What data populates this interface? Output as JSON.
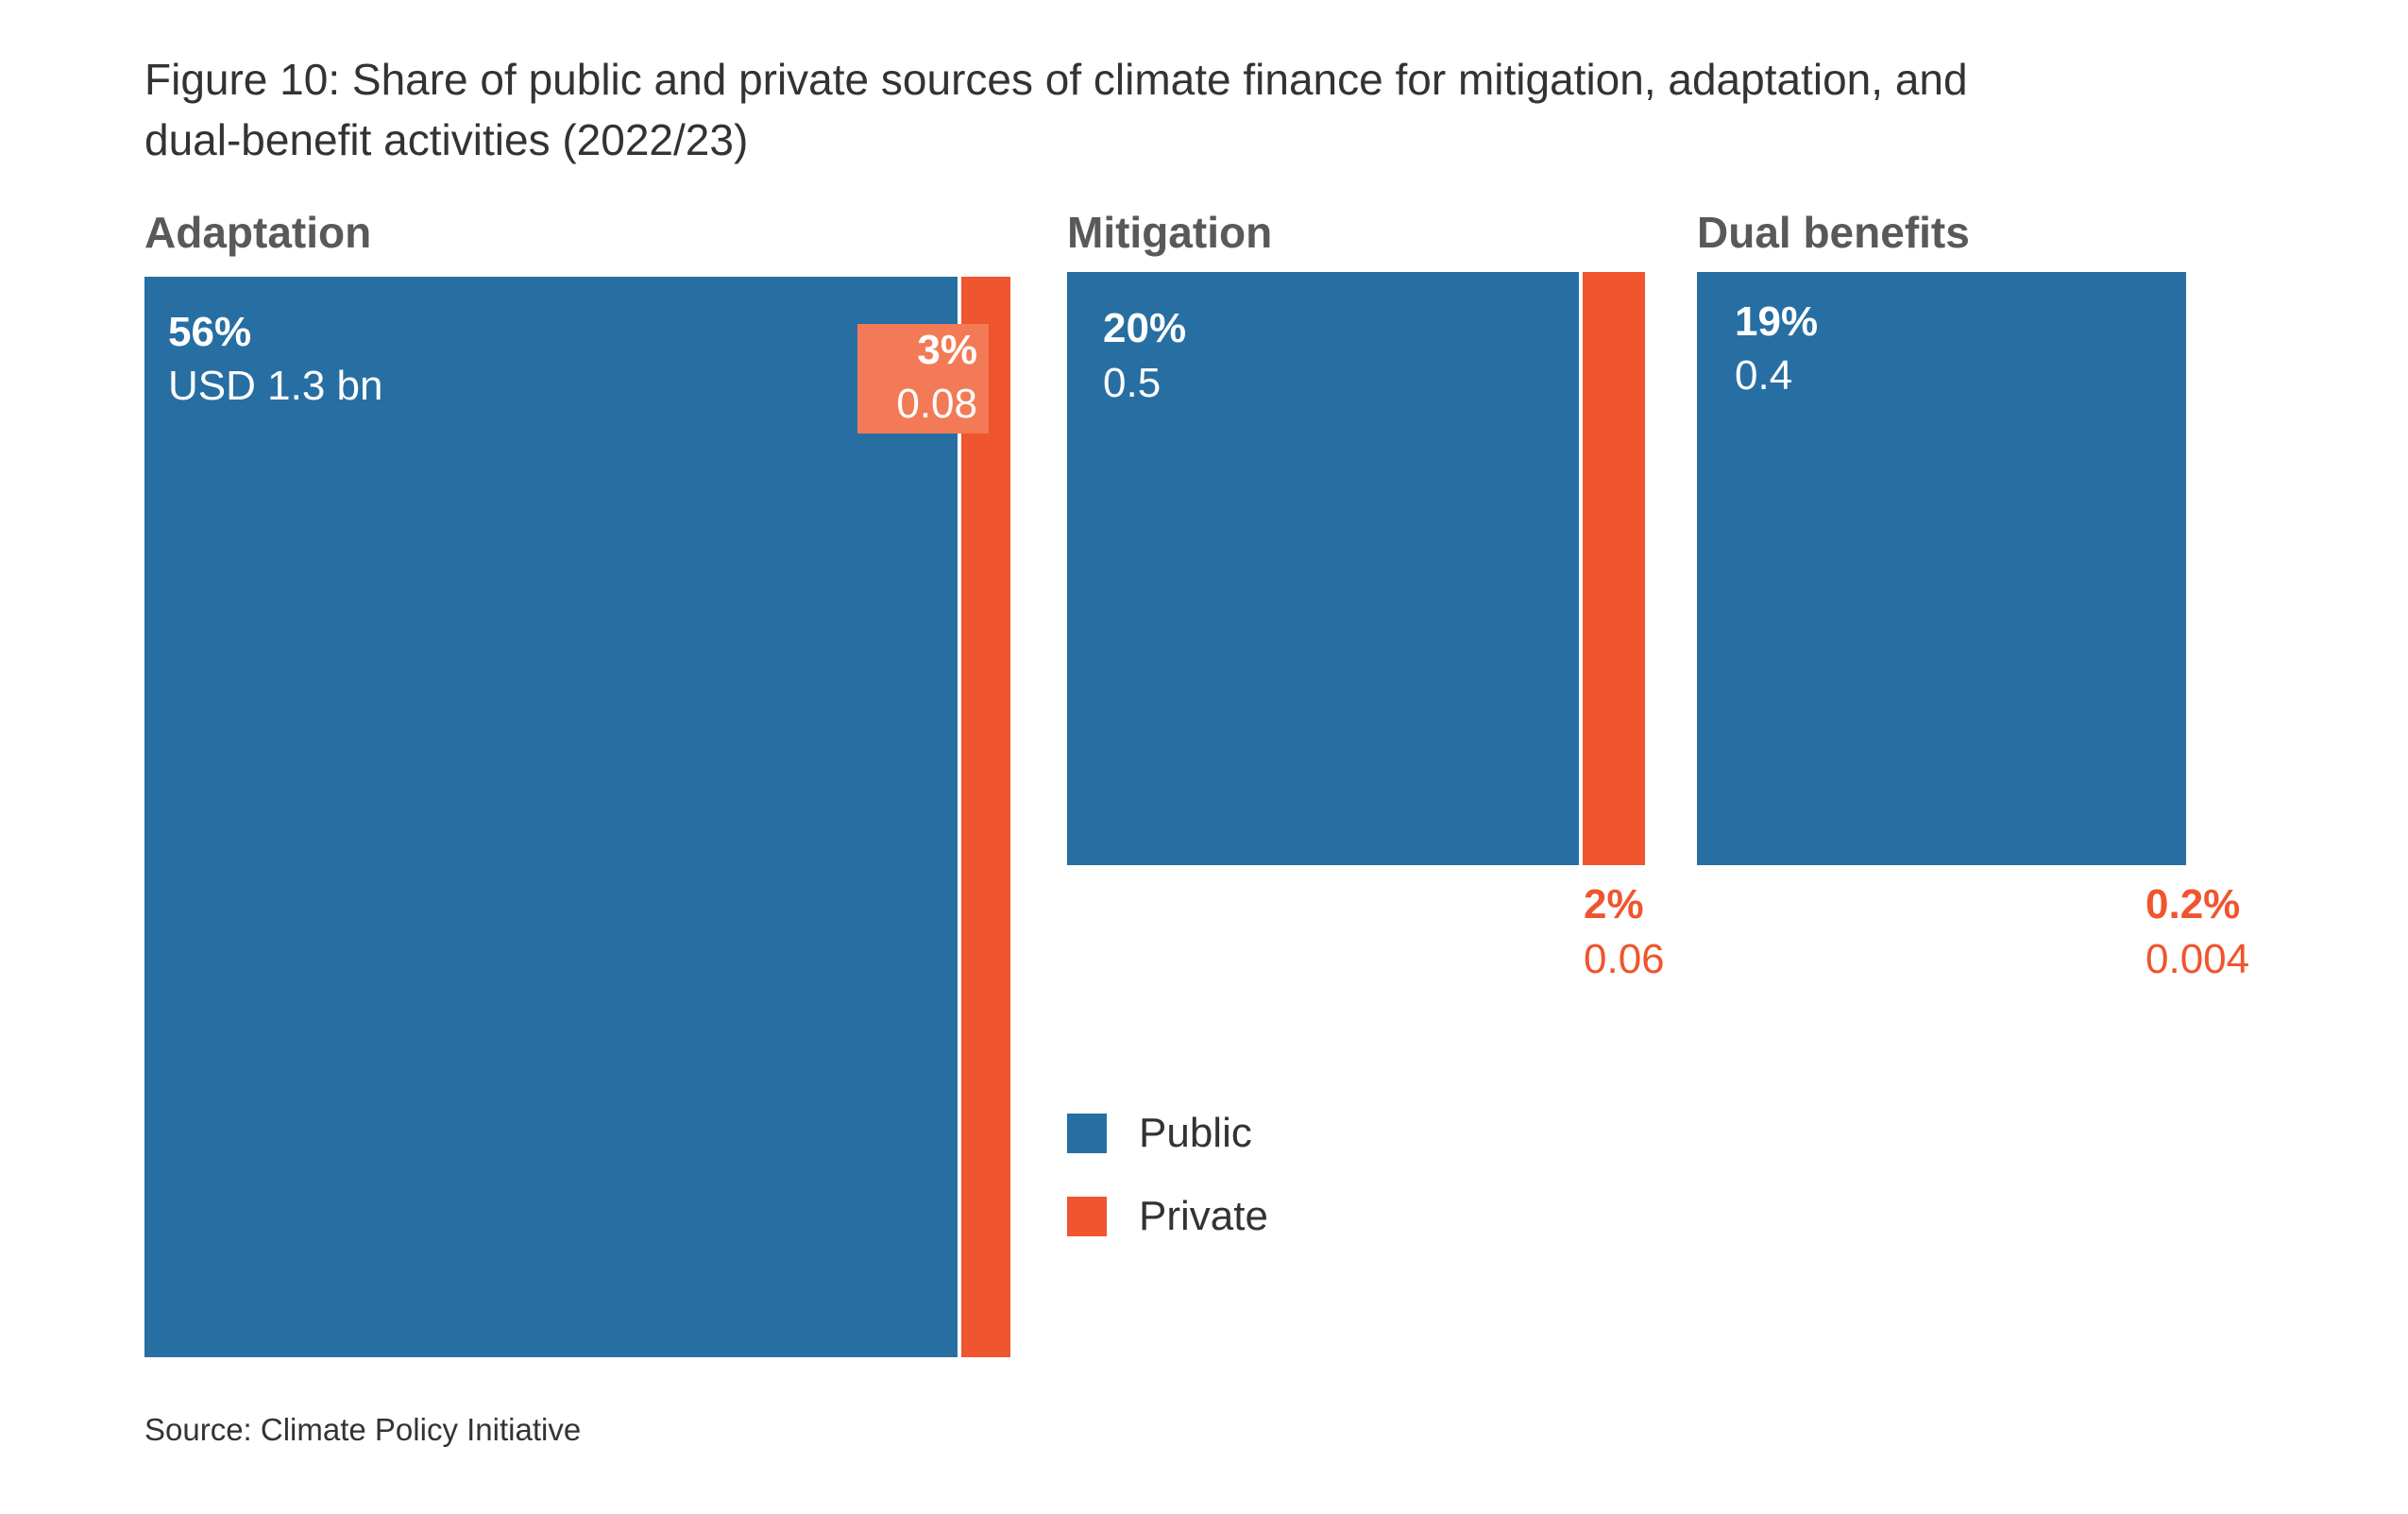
{
  "title": "Figure 10: Share of public and private sources of climate finance for mitigation, adaptation, and dual-benefit activities (2022/23)",
  "source": "Source: Climate Policy Initiative",
  "colors": {
    "public": "#276ea3",
    "private": "#ef552e",
    "private_label_bg": "#f37a56",
    "heading": "#595959",
    "text": "#333333"
  },
  "legend": [
    {
      "name": "Public",
      "color_key": "public"
    },
    {
      "name": "Private",
      "color_key": "private"
    }
  ],
  "chart_data": {
    "type": "treemap",
    "title": "Figure 10: Share of public and private sources of climate finance for mitigation, adaptation, and dual-benefit activities (2022/23)",
    "unit": "USD bn",
    "groups": [
      {
        "name": "Adaptation",
        "segments": [
          {
            "source": "Public",
            "share_label": "56%",
            "value_label": "USD 1.3 bn",
            "share": 56,
            "value": 1.3
          },
          {
            "source": "Private",
            "share_label": "3%",
            "value_label": "0.08",
            "share": 3,
            "value": 0.08
          }
        ]
      },
      {
        "name": "Mitigation",
        "segments": [
          {
            "source": "Public",
            "share_label": "20%",
            "value_label": "0.5",
            "share": 20,
            "value": 0.5
          },
          {
            "source": "Private",
            "share_label": "2%",
            "value_label": "0.06",
            "share": 2,
            "value": 0.06
          }
        ]
      },
      {
        "name": "Dual benefits",
        "segments": [
          {
            "source": "Public",
            "share_label": "19%",
            "value_label": "0.4",
            "share": 19,
            "value": 0.4
          },
          {
            "source": "Private",
            "share_label": "0.2%",
            "value_label": "0.004",
            "share": 0.2,
            "value": 0.004
          }
        ]
      }
    ]
  }
}
